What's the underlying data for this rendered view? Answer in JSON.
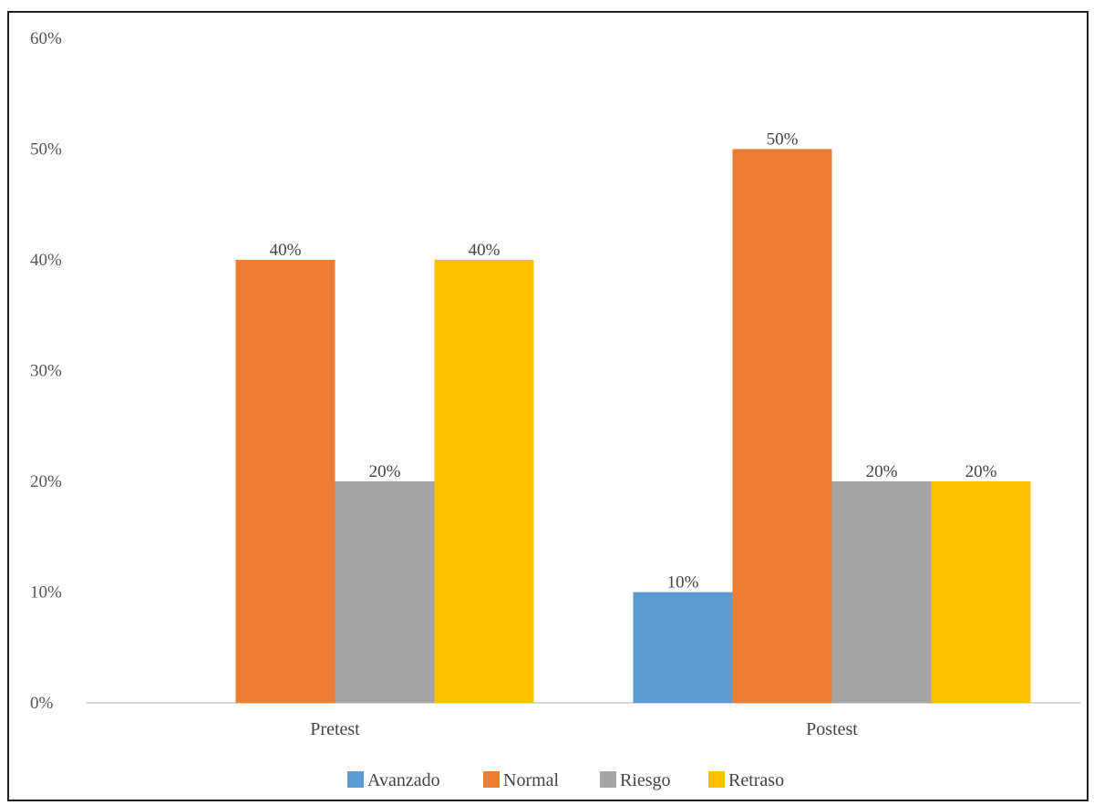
{
  "chart_data": {
    "type": "bar",
    "title": "",
    "xlabel": "",
    "ylabel": "",
    "categories": [
      "Pretest",
      "Postest"
    ],
    "series": [
      {
        "name": "Avanzado",
        "color": "#5B9BD5",
        "values": [
          0,
          10
        ]
      },
      {
        "name": "Normal",
        "color": "#ED7D31",
        "values": [
          40,
          50
        ]
      },
      {
        "name": "Riesgo",
        "color": "#A5A5A5",
        "values": [
          20,
          20
        ]
      },
      {
        "name": "Retraso",
        "color": "#FFC000",
        "values": [
          40,
          20
        ]
      }
    ],
    "data_labels": [
      [
        null,
        "10%"
      ],
      [
        "40%",
        "50%"
      ],
      [
        "20%",
        "20%"
      ],
      [
        "40%",
        "20%"
      ]
    ],
    "yticks": [
      "0%",
      "10%",
      "20%",
      "30%",
      "40%",
      "50%",
      "60%"
    ],
    "ylim": [
      0,
      60
    ],
    "grid": false,
    "legend_position": "bottom"
  }
}
